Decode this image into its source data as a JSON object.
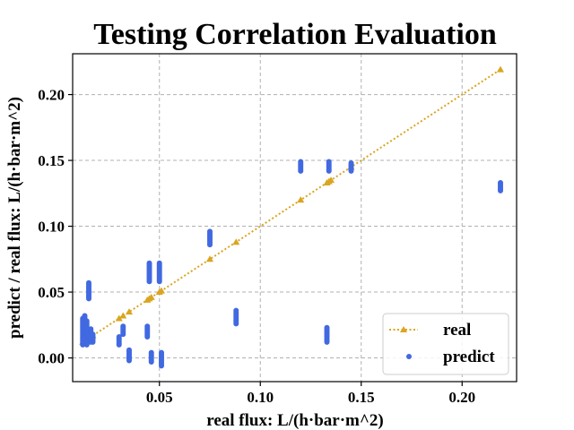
{
  "chart_data": {
    "type": "scatter",
    "title": "Testing Correlation Evaluation",
    "xlabel": "real flux: L/(h·bar·m^2)",
    "ylabel": "predict / real flux: L/(h·bar·m^2)",
    "xlim": [
      0.007,
      0.227
    ],
    "ylim": [
      -0.018,
      0.231
    ],
    "xticks": [
      0.05,
      0.1,
      0.15,
      0.2
    ],
    "xtick_labels": [
      "0.05",
      "0.10",
      "0.15",
      "0.20"
    ],
    "yticks": [
      0.0,
      0.05,
      0.1,
      0.15,
      0.2
    ],
    "ytick_labels": [
      "0.00",
      "0.05",
      "0.10",
      "0.15",
      "0.20"
    ],
    "grid": true,
    "legend_position": "bottom-right",
    "colors": {
      "real": "#DAA520",
      "predict": "#4169E1"
    },
    "series": [
      {
        "name": "real",
        "style": "dotted-line-triangle",
        "x": [
          0.012,
          0.013,
          0.014,
          0.015,
          0.016,
          0.017,
          0.03,
          0.032,
          0.035,
          0.044,
          0.045,
          0.046,
          0.05,
          0.051,
          0.075,
          0.088,
          0.12,
          0.133,
          0.134,
          0.135,
          0.145,
          0.219
        ],
        "y": [
          0.012,
          0.013,
          0.014,
          0.015,
          0.016,
          0.017,
          0.03,
          0.032,
          0.035,
          0.044,
          0.045,
          0.046,
          0.05,
          0.051,
          0.075,
          0.088,
          0.12,
          0.133,
          0.134,
          0.135,
          0.145,
          0.219
        ]
      },
      {
        "name": "predict",
        "style": "dots",
        "groups": [
          {
            "x": 0.012,
            "y_range": [
              0.01,
              0.03
            ]
          },
          {
            "x": 0.013,
            "y_range": [
              0.015,
              0.032
            ]
          },
          {
            "x": 0.014,
            "y_range": [
              0.01,
              0.028
            ]
          },
          {
            "x": 0.015,
            "y_range": [
              0.045,
              0.057
            ]
          },
          {
            "x": 0.016,
            "y_range": [
              0.012,
              0.022
            ]
          },
          {
            "x": 0.017,
            "y_range": [
              0.012,
              0.018
            ]
          },
          {
            "x": 0.03,
            "y_range": [
              0.01,
              0.016
            ]
          },
          {
            "x": 0.032,
            "y_range": [
              0.018,
              0.024
            ]
          },
          {
            "x": 0.035,
            "y_range": [
              -0.002,
              0.006
            ]
          },
          {
            "x": 0.044,
            "y_range": [
              0.016,
              0.024
            ]
          },
          {
            "x": 0.045,
            "y_range": [
              0.058,
              0.072
            ]
          },
          {
            "x": 0.046,
            "y_range": [
              -0.003,
              0.004
            ]
          },
          {
            "x": 0.05,
            "y_range": [
              0.058,
              0.072
            ]
          },
          {
            "x": 0.051,
            "y_range": [
              -0.006,
              0.004
            ]
          },
          {
            "x": 0.075,
            "y_range": [
              0.086,
              0.096
            ]
          },
          {
            "x": 0.088,
            "y_range": [
              0.026,
              0.036
            ]
          },
          {
            "x": 0.12,
            "y_range": [
              0.142,
              0.149
            ]
          },
          {
            "x": 0.134,
            "y_range": [
              0.142,
              0.149
            ]
          },
          {
            "x": 0.133,
            "y_range": [
              0.012,
              0.023
            ]
          },
          {
            "x": 0.145,
            "y_range": [
              0.142,
              0.148
            ]
          },
          {
            "x": 0.219,
            "y_range": [
              0.127,
              0.133
            ]
          }
        ]
      }
    ]
  }
}
